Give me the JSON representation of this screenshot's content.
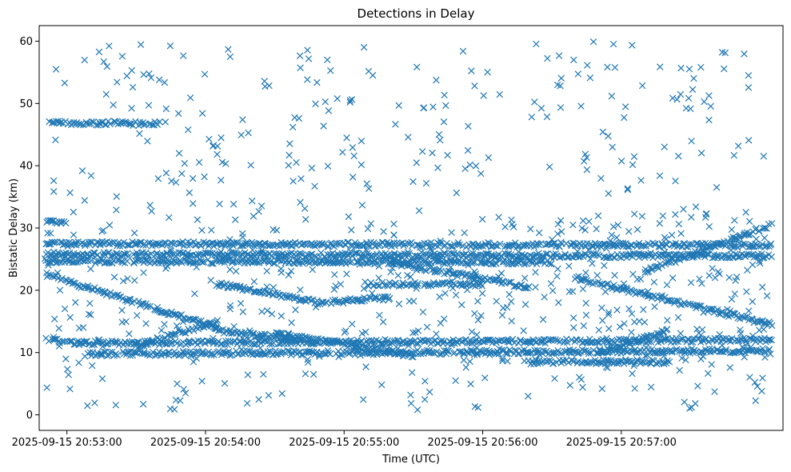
{
  "chart_data": {
    "type": "scatter",
    "title": "Detections in Delay",
    "xlabel": "Time (UTC)",
    "ylabel": "Bistatic Delay (km)",
    "x_type": "time",
    "xlim": [
      "2025-09-15 20:52:48",
      "2025-09-15 20:58:10"
    ],
    "ylim": [
      -2.5,
      62.5
    ],
    "x_ticks": [
      {
        "value": "2025-09-15 20:53:00",
        "label": "2025-09-15 20:53:00"
      },
      {
        "value": "2025-09-15 20:54:00",
        "label": "2025-09-15 20:54:00"
      },
      {
        "value": "2025-09-15 20:55:00",
        "label": "2025-09-15 20:55:00"
      },
      {
        "value": "2025-09-15 20:56:00",
        "label": "2025-09-15 20:56:00"
      },
      {
        "value": "2025-09-15 20:57:00",
        "label": "2025-09-15 20:57:00"
      }
    ],
    "y_ticks": [
      0,
      10,
      20,
      30,
      40,
      50,
      60
    ],
    "marker": "x",
    "color": "#1f77b4",
    "grid": false,
    "time_range": [
      "2025-09-15 20:52:50",
      "2025-09-15 20:58:05"
    ],
    "tracks": [
      {
        "t": [
          "20:52:51",
          "20:53:40"
        ],
        "y": [
          46.8,
          46.8
        ]
      },
      {
        "t": [
          "20:52:51",
          "20:58:05"
        ],
        "y": [
          27.5,
          27.2
        ]
      },
      {
        "t": [
          "20:52:51",
          "20:58:05"
        ],
        "y": [
          25.8,
          25.5
        ]
      },
      {
        "t": [
          "20:52:51",
          "20:56:30"
        ],
        "y": [
          24.7,
          24.5
        ]
      },
      {
        "t": [
          "20:52:51",
          "20:54:05"
        ],
        "y": [
          22.5,
          14.0
        ]
      },
      {
        "t": [
          "20:54:05",
          "20:54:40"
        ],
        "y": [
          13.5,
          12.0
        ]
      },
      {
        "t": [
          "20:52:51",
          "20:53:05"
        ],
        "y": [
          12.0,
          11.5
        ]
      },
      {
        "t": [
          "20:53:05",
          "20:58:05"
        ],
        "y": [
          11.5,
          12.0
        ]
      },
      {
        "t": [
          "20:53:10",
          "20:58:05"
        ],
        "y": [
          9.8,
          10.3
        ]
      },
      {
        "t": [
          "20:53:30",
          "20:54:05"
        ],
        "y": [
          11.0,
          15.0
        ]
      },
      {
        "t": [
          "20:54:05",
          "20:54:50"
        ],
        "y": [
          21.0,
          18.0
        ]
      },
      {
        "t": [
          "20:54:50",
          "20:55:20"
        ],
        "y": [
          18.0,
          18.8
        ]
      },
      {
        "t": [
          "20:55:20",
          "20:56:20"
        ],
        "y": [
          24.5,
          20.5
        ]
      },
      {
        "t": [
          "20:56:40",
          "20:58:05"
        ],
        "y": [
          22.0,
          14.5
        ]
      },
      {
        "t": [
          "20:56:50",
          "20:57:20"
        ],
        "y": [
          10.0,
          13.5
        ]
      },
      {
        "t": [
          "20:57:10",
          "20:58:05"
        ],
        "y": [
          23.0,
          30.5
        ]
      },
      {
        "t": [
          "20:56:20",
          "20:57:20"
        ],
        "y": [
          8.5,
          8.5
        ]
      },
      {
        "t": [
          "20:54:30",
          "20:55:30"
        ],
        "y": [
          13.0,
          9.5
        ]
      },
      {
        "t": [
          "20:55:10",
          "20:56:00"
        ],
        "y": [
          21.0,
          21.0
        ]
      },
      {
        "t": [
          "20:52:51",
          "20:53:00"
        ],
        "y": [
          31.0,
          31.0
        ]
      }
    ],
    "background_count": 520,
    "y_range_background": [
      0.5,
      60
    ]
  }
}
